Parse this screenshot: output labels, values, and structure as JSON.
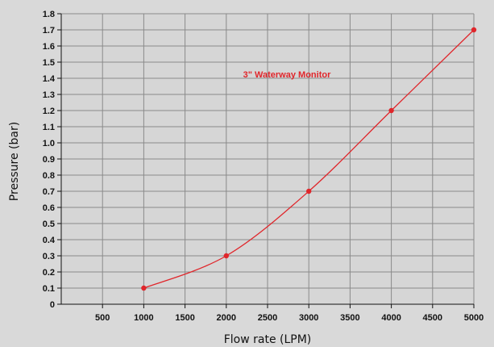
{
  "chart_data": {
    "type": "line",
    "title": "",
    "annotation": "3\" Waterway Monitor",
    "xlabel": "Flow rate (LPM)",
    "ylabel": "Pressure (bar)",
    "xlim": [
      0,
      5000
    ],
    "ylim": [
      0,
      1.8
    ],
    "x_ticks": [
      "500",
      "1000",
      "1500",
      "2000",
      "2500",
      "3000",
      "3500",
      "4000",
      "4500",
      "5000"
    ],
    "y_ticks": [
      "0",
      "0.1",
      "0.2",
      "0.3",
      "0.4",
      "0.5",
      "0.6",
      "0.7",
      "0.8",
      "0.9",
      "1.0",
      "1.1",
      "1.2",
      "1.3",
      "1.4",
      "1.5",
      "1.6",
      "1.7",
      "1.8"
    ],
    "grid": true,
    "series": [
      {
        "color": "#e0262b",
        "x": [
          1000,
          2000,
          3000,
          4000,
          5000
        ],
        "y": [
          0.1,
          0.3,
          0.7,
          1.2,
          1.7
        ]
      }
    ]
  }
}
